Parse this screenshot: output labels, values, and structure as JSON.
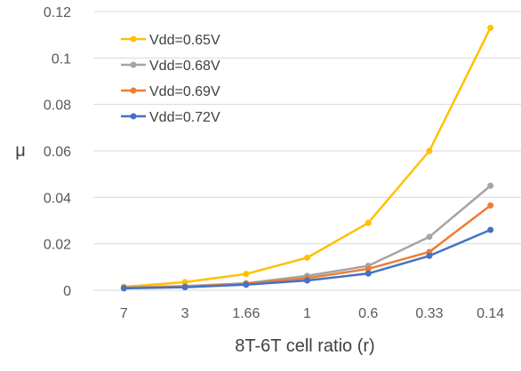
{
  "chart_data": {
    "type": "line",
    "title": "",
    "xlabel": "8T-6T cell ratio (r)",
    "ylabel": "μ",
    "categories": [
      "7",
      "3",
      "1.66",
      "1",
      "0.6",
      "0.33",
      "0.14"
    ],
    "ylim": [
      0,
      0.12
    ],
    "yticks": [
      0,
      0.02,
      0.04,
      0.06,
      0.08,
      0.1,
      0.12
    ],
    "ytick_labels": [
      "0",
      "0.02",
      "0.04",
      "0.06",
      "0.08",
      "0.1",
      "0.12"
    ],
    "grid": "horizontal",
    "legend_position": "top-left",
    "series": [
      {
        "name": "Vdd=0.65V",
        "color": "#FFC000",
        "values": [
          0.0015,
          0.0035,
          0.007,
          0.014,
          0.029,
          0.06,
          0.113
        ]
      },
      {
        "name": "Vdd=0.68V",
        "color": "#A5A5A5",
        "values": [
          0.0012,
          0.0018,
          0.003,
          0.0062,
          0.0105,
          0.023,
          0.045
        ]
      },
      {
        "name": "Vdd=0.69V",
        "color": "#ED7D31",
        "values": [
          0.001,
          0.0015,
          0.0028,
          0.0052,
          0.0092,
          0.0165,
          0.0365
        ]
      },
      {
        "name": "Vdd=0.72V",
        "color": "#4472C4",
        "values": [
          0.0008,
          0.0013,
          0.0024,
          0.0042,
          0.0072,
          0.0148,
          0.026
        ]
      }
    ]
  }
}
